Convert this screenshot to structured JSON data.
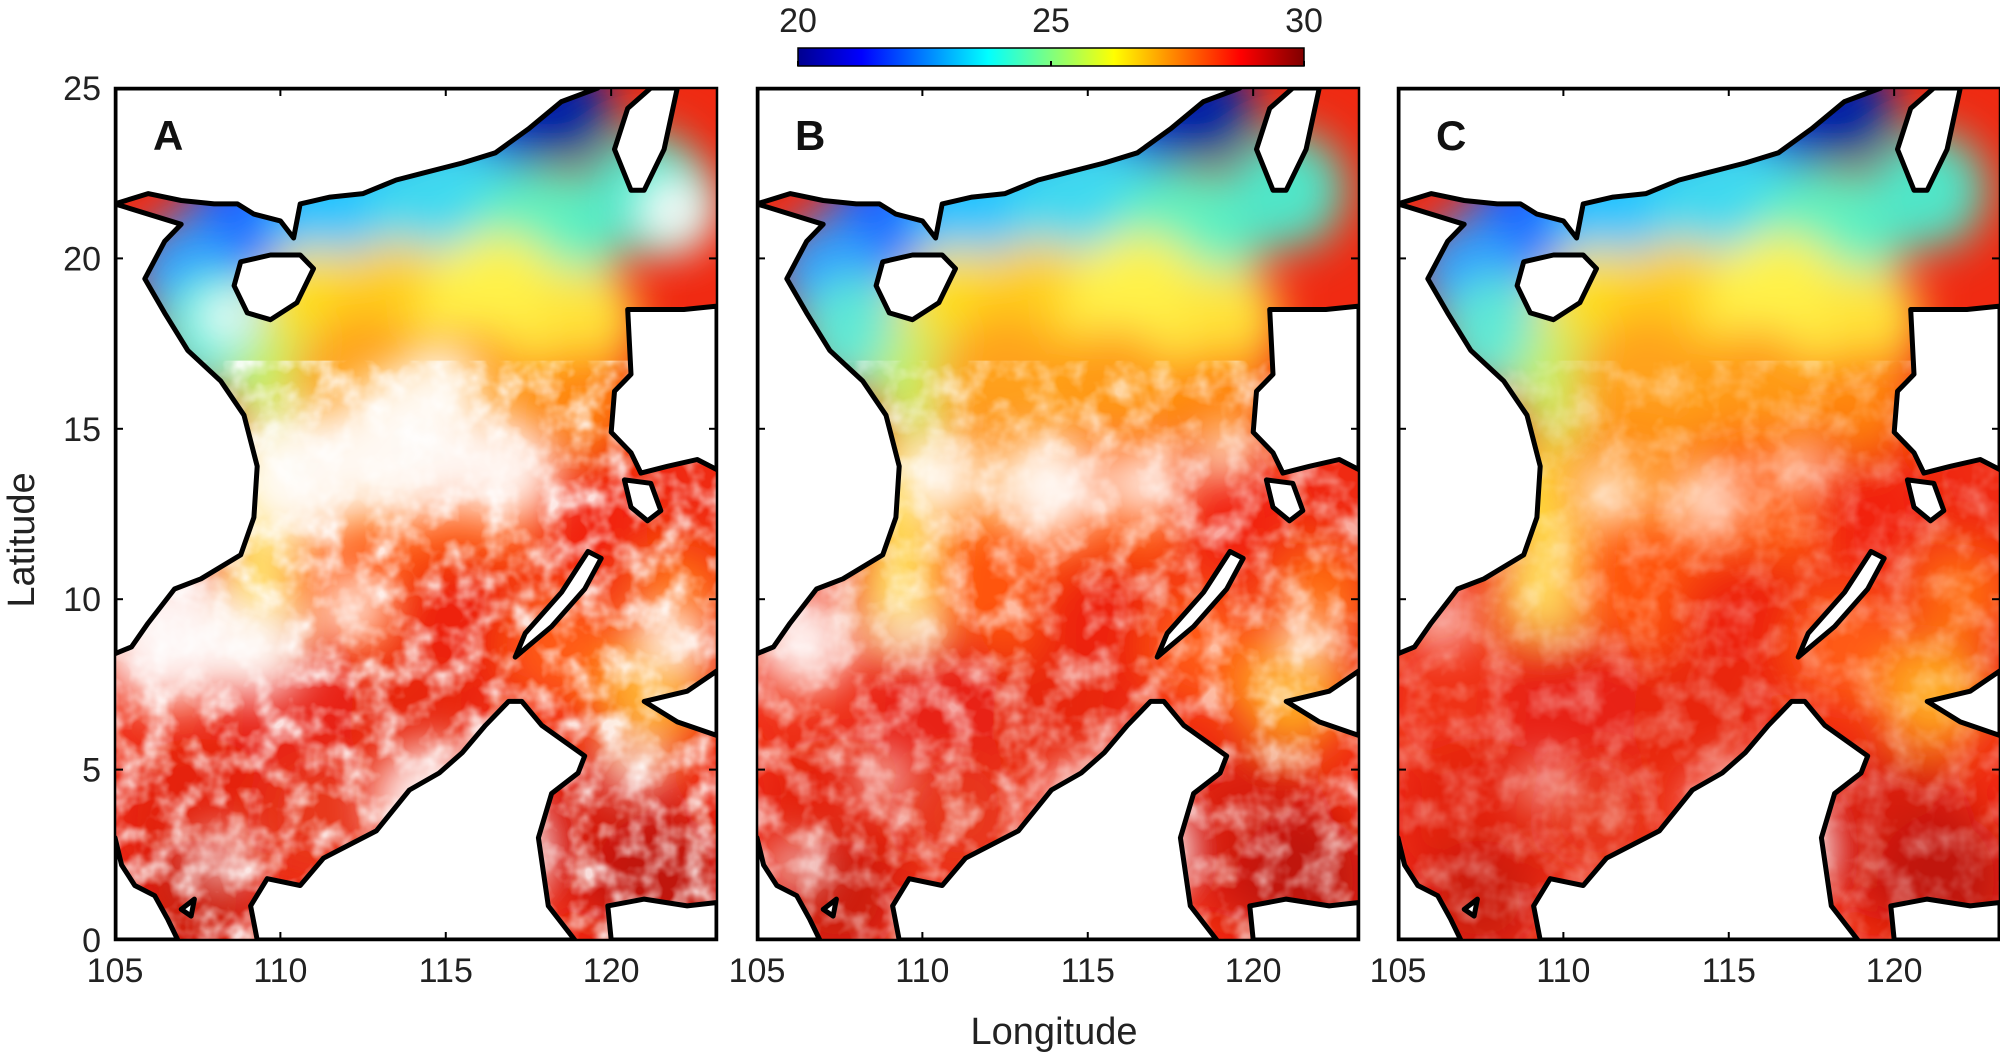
{
  "chart_data": {
    "type": "heatmap",
    "xlabel": "Longitude",
    "ylabel": "Latitude",
    "xlim": [
      105,
      123.2
    ],
    "ylim": [
      0,
      25
    ],
    "xticks": [
      105,
      110,
      115,
      120
    ],
    "yticks": [
      0,
      5,
      10,
      15,
      20,
      25
    ],
    "colorbar": {
      "ticks": [
        20,
        25,
        30
      ],
      "range": [
        20,
        30
      ],
      "colors": [
        "#00008f",
        "#0000ff",
        "#007fff",
        "#00ffff",
        "#7fff7f",
        "#ffff00",
        "#ff7f00",
        "#ff0000",
        "#7f0000"
      ]
    },
    "panels": [
      {
        "label": "A",
        "coverage": "sparse"
      },
      {
        "label": "B",
        "coverage": "medium"
      },
      {
        "label": "C",
        "coverage": "dense"
      }
    ]
  }
}
